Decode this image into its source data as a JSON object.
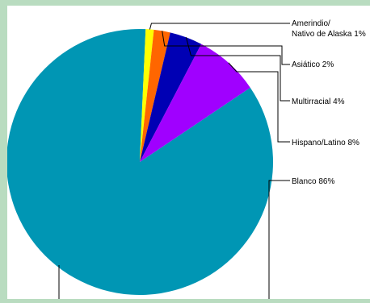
{
  "colors": {
    "page_background": "#b9dcc0",
    "chart_background": "#ffffff",
    "leader_line": "#000000"
  },
  "chart_data": {
    "type": "pie",
    "title": "",
    "slices": [
      {
        "label": "Blanco",
        "label_text": "Blanco 86%",
        "value": 86,
        "color": "#0096b4"
      },
      {
        "label": "Amerindio/Nativo de Alaska",
        "label_lines": [
          "Amerindio/",
          "Nativo de Alaska 1%"
        ],
        "value": 1,
        "color": "#ffff00"
      },
      {
        "label": "Asiático",
        "label_text": "Asiático 2%",
        "value": 2,
        "color": "#ff6600"
      },
      {
        "label": "Multirracial",
        "label_text": "Multirracial 4%",
        "value": 4,
        "color": "#0000b4"
      },
      {
        "label": "Hispano/Latino",
        "label_text": "Hispano/Latino 8%",
        "value": 8,
        "color": "#a000ff"
      }
    ]
  }
}
